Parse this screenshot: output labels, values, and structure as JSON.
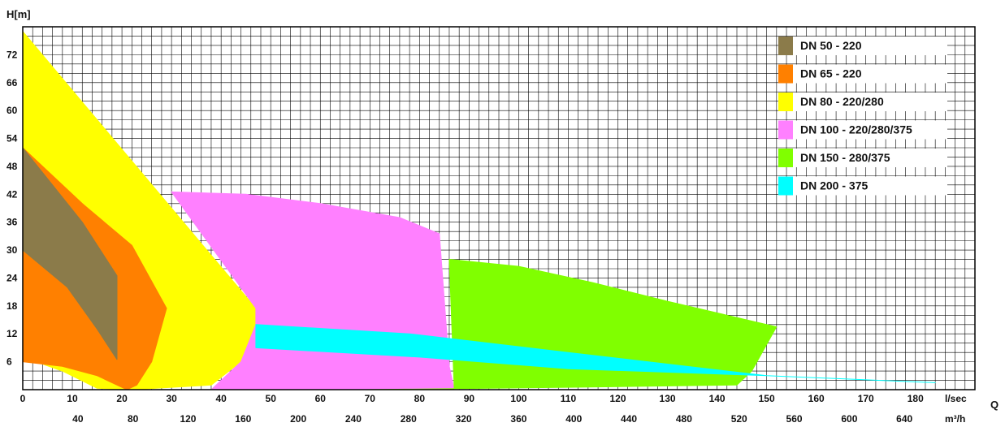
{
  "chart_data": {
    "type": "area",
    "title": "",
    "ylabel": "H[m]",
    "xlabel": "Q",
    "x_unit_primary": "l/sec",
    "x_unit_secondary": "m³/h",
    "x_primary_ticks": [
      "0",
      "10",
      "20",
      "30",
      "40",
      "50",
      "60",
      "70",
      "80",
      "90",
      "100",
      "110",
      "120",
      "130",
      "140",
      "150",
      "160",
      "170",
      "180"
    ],
    "x_secondary_ticks": [
      "40",
      "80",
      "120",
      "160",
      "200",
      "240",
      "280",
      "320",
      "360",
      "400",
      "440",
      "480",
      "520",
      "560",
      "600",
      "640"
    ],
    "y_ticks": [
      "6",
      "12",
      "18",
      "24",
      "30",
      "36",
      "42",
      "48",
      "54",
      "60",
      "66",
      "72"
    ],
    "xlim": [
      0,
      192
    ],
    "ylim": [
      0,
      78
    ],
    "grid": true,
    "legend_position": "top-right",
    "series": [
      {
        "name": "DN 80 - 220/280",
        "color": "#ffff00",
        "points": [
          [
            0,
            77
          ],
          [
            47,
            17.5
          ],
          [
            47,
            14
          ],
          [
            44,
            6
          ],
          [
            38,
            1
          ],
          [
            22,
            0
          ],
          [
            15,
            0.3
          ],
          [
            8,
            4
          ],
          [
            0,
            7
          ]
        ]
      },
      {
        "name": "DN 100 - 220/280/375",
        "color": "#ff80ff",
        "points": [
          [
            30,
            42.5
          ],
          [
            45,
            42
          ],
          [
            60,
            40
          ],
          [
            76,
            37
          ],
          [
            84,
            33.5
          ],
          [
            86,
            5
          ],
          [
            87,
            0
          ],
          [
            38,
            0
          ],
          [
            44,
            6
          ],
          [
            47,
            14
          ],
          [
            47,
            17.5
          ]
        ]
      },
      {
        "name": "DN 150 - 280/375",
        "color": "#80ff00",
        "points": [
          [
            86,
            28
          ],
          [
            100,
            26.5
          ],
          [
            115,
            23
          ],
          [
            130,
            19
          ],
          [
            142,
            16
          ],
          [
            152,
            13.5
          ],
          [
            147,
            4
          ],
          [
            144,
            1
          ],
          [
            110,
            0.5
          ],
          [
            69,
            0
          ],
          [
            87,
            0
          ]
        ]
      },
      {
        "name": "DN 65 - 220",
        "color": "#ff8000",
        "points": [
          [
            0,
            52
          ],
          [
            12,
            40
          ],
          [
            22,
            31
          ],
          [
            29,
            17.5
          ],
          [
            26,
            6
          ],
          [
            23,
            1
          ],
          [
            21,
            0
          ],
          [
            15,
            3
          ],
          [
            8,
            5
          ],
          [
            0,
            6
          ]
        ]
      },
      {
        "name": "DN 50 - 220",
        "color": "#8b7b4a",
        "points": [
          [
            0,
            52
          ],
          [
            6,
            44
          ],
          [
            12,
            36
          ],
          [
            19,
            24.5
          ],
          [
            19,
            6.5
          ],
          [
            15,
            13
          ],
          [
            9,
            22
          ],
          [
            0,
            30
          ]
        ]
      },
      {
        "name": "DN 200 - 375",
        "color": "#00ffff",
        "points": [
          [
            47,
            14
          ],
          [
            78,
            12
          ],
          [
            110,
            8
          ],
          [
            150,
            3
          ],
          [
            184,
            1.5
          ],
          [
            150,
            3
          ],
          [
            110,
            4.5
          ],
          [
            80,
            7
          ],
          [
            47,
            9
          ]
        ]
      }
    ]
  }
}
